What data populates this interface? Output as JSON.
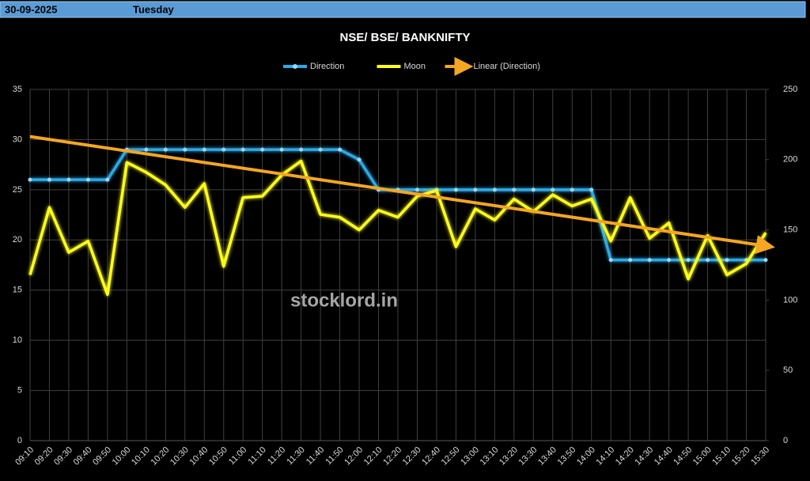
{
  "header": {
    "date": "30-09-2025",
    "day": "Tuesday"
  },
  "watermark": "stocklord.in",
  "chart_data": {
    "type": "line",
    "title": "NSE/ BSE/ BANKNIFTY",
    "categories": [
      "09:10",
      "09:20",
      "09:30",
      "09:40",
      "09:50",
      "10:00",
      "10:10",
      "10:20",
      "10:30",
      "10:40",
      "10:50",
      "11:00",
      "11:10",
      "11:20",
      "11:30",
      "11:40",
      "11:50",
      "12:00",
      "12:10",
      "12:20",
      "12:30",
      "12:40",
      "12:50",
      "13:00",
      "13:10",
      "13:20",
      "13:30",
      "13:40",
      "13:50",
      "14:00",
      "14:10",
      "14:20",
      "14:30",
      "14:40",
      "14:50",
      "15:00",
      "15:10",
      "15:20",
      "15:30"
    ],
    "series": [
      {
        "name": "Direction",
        "color": "#2ea8e6",
        "axis": "y",
        "markers": true,
        "values": [
          26,
          26,
          26,
          26,
          26,
          29,
          29,
          29,
          29,
          29,
          29,
          29,
          29,
          29,
          29,
          29,
          29,
          28,
          25,
          25,
          25,
          25,
          25,
          25,
          25,
          25,
          25,
          25,
          25,
          25,
          18,
          18,
          18,
          18,
          18,
          18,
          18,
          18,
          18
        ]
      },
      {
        "name": "Moon",
        "color": "#ffff1a",
        "axis": "y2",
        "markers": false,
        "values": [
          118,
          166,
          134,
          142,
          104,
          198,
          191,
          182,
          166,
          183,
          124,
          173,
          174,
          189,
          199,
          161,
          159,
          150,
          164,
          159,
          174,
          178,
          138,
          165,
          157,
          172,
          163,
          175,
          167,
          172,
          142,
          173,
          144,
          155,
          115,
          146,
          118,
          126,
          148
        ]
      }
    ],
    "trendline": {
      "name": "Linear (Direction)",
      "color": "#f5a623",
      "values": [
        30.3,
        19.4
      ]
    },
    "ylim": [
      0,
      35
    ],
    "yticks": [
      0,
      5,
      10,
      15,
      20,
      25,
      30,
      35
    ],
    "y2lim": [
      0,
      250
    ],
    "y2ticks": [
      0,
      50,
      100,
      150,
      200,
      250
    ],
    "grid": true,
    "legend": "top"
  }
}
